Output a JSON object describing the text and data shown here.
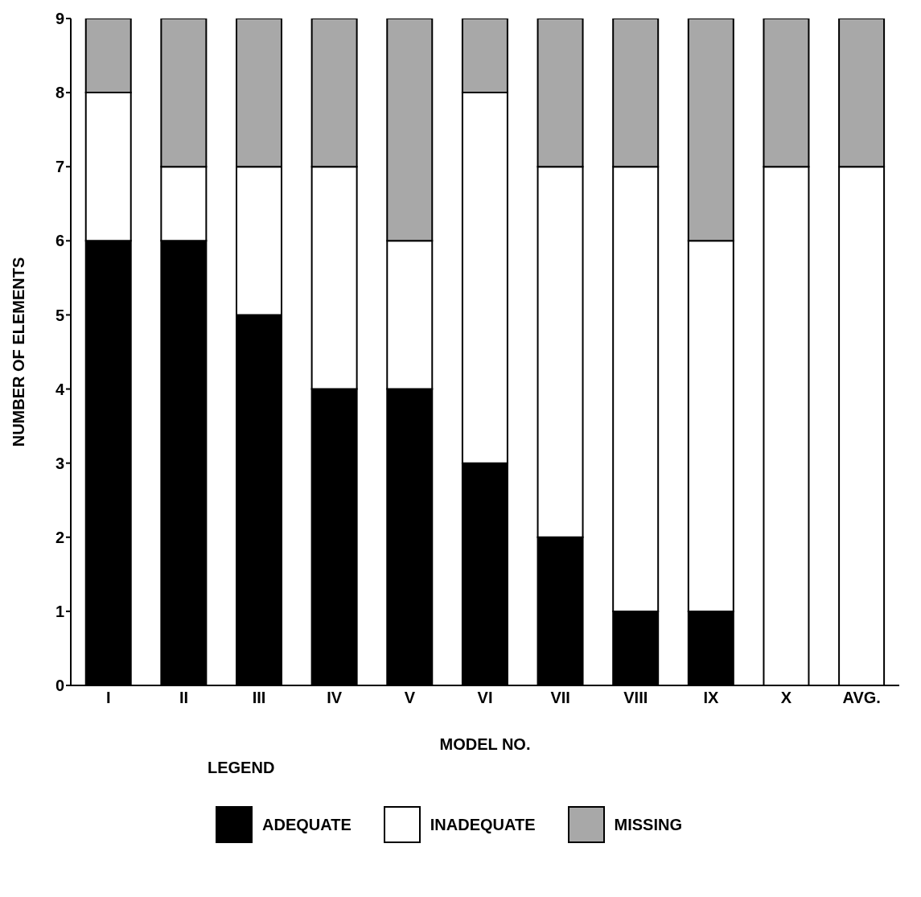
{
  "chart_data": {
    "type": "bar",
    "stacked": true,
    "xlabel": "MODEL NO.",
    "ylabel": "NUMBER OF ELEMENTS",
    "legend_title": "LEGEND",
    "legend": "bottom",
    "grid": false,
    "categories": [
      "I",
      "II",
      "III",
      "IV",
      "V",
      "VI",
      "VII",
      "VIII",
      "IX",
      "X",
      "AVG."
    ],
    "ylim": [
      0,
      9
    ],
    "yticks": [
      0,
      1,
      2,
      3,
      4,
      5,
      6,
      7,
      8,
      9
    ],
    "series": [
      {
        "name": "ADEQUATE",
        "color": "#000000",
        "values": [
          6,
          6,
          5,
          4,
          4,
          3,
          2,
          1,
          1,
          0,
          0
        ]
      },
      {
        "name": "INADEQUATE",
        "color": "#ffffff",
        "values": [
          2,
          1,
          2,
          3,
          2,
          5,
          5,
          6,
          5,
          7,
          7
        ]
      },
      {
        "name": "MISSING",
        "color": "#a8a8a8",
        "values": [
          1,
          2,
          2,
          2,
          3,
          1,
          2,
          2,
          3,
          2,
          2
        ]
      }
    ]
  }
}
